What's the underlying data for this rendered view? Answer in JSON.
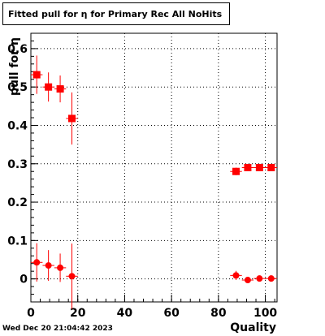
{
  "chart_data": {
    "type": "scatter",
    "title_parts": [
      "Fitted pull for ",
      "η",
      " for Primary Rec All NoHits"
    ],
    "xlabel": "Quality",
    "ylabel_parts": [
      "pull for ",
      "η"
    ],
    "xlim": [
      0,
      105
    ],
    "ylim": [
      -0.06,
      0.64
    ],
    "x_ticks": [
      0,
      20,
      40,
      60,
      80,
      100
    ],
    "y_ticks": [
      0,
      0.1,
      0.2,
      0.3,
      0.4,
      0.5,
      0.6
    ],
    "y_tick_labels": [
      "0",
      "0.1",
      "0.2",
      "0.3",
      "0.4",
      "0.5",
      "0.6"
    ],
    "x_tick_labels": [
      "0",
      "20",
      "40",
      "60",
      "80",
      "100"
    ],
    "grid": true,
    "marker_color": "#ff0000",
    "series": [
      {
        "marker": "square",
        "points": [
          {
            "x": 2.5,
            "y": 0.532,
            "yerr": 0.05
          },
          {
            "x": 7.5,
            "y": 0.5,
            "yerr": 0.038
          },
          {
            "x": 12.5,
            "y": 0.495,
            "yerr": 0.035
          },
          {
            "x": 17.5,
            "y": 0.418,
            "yerr": 0.068
          },
          {
            "x": 87.5,
            "y": 0.28,
            "yerr": 0.01
          },
          {
            "x": 92.5,
            "y": 0.29,
            "yerr": 0.005
          },
          {
            "x": 97.5,
            "y": 0.29,
            "yerr": 0.005
          },
          {
            "x": 102.5,
            "y": 0.29,
            "yerr": 0.005
          }
        ]
      },
      {
        "marker": "circle",
        "points": [
          {
            "x": 2.5,
            "y": 0.043,
            "yerr": 0.05
          },
          {
            "x": 7.5,
            "y": 0.035,
            "yerr": 0.04
          },
          {
            "x": 12.5,
            "y": 0.029,
            "yerr": 0.037
          },
          {
            "x": 17.5,
            "y": 0.007,
            "yerr": 0.085
          },
          {
            "x": 87.5,
            "y": 0.009,
            "yerr": 0.012
          },
          {
            "x": 92.5,
            "y": -0.003,
            "yerr": 0.005
          },
          {
            "x": 97.5,
            "y": 0.001,
            "yerr": 0.005
          },
          {
            "x": 102.5,
            "y": 0.001,
            "yerr": 0.005
          }
        ]
      }
    ]
  },
  "timestamp": "Wed Dec 20 21:04:42 2023"
}
